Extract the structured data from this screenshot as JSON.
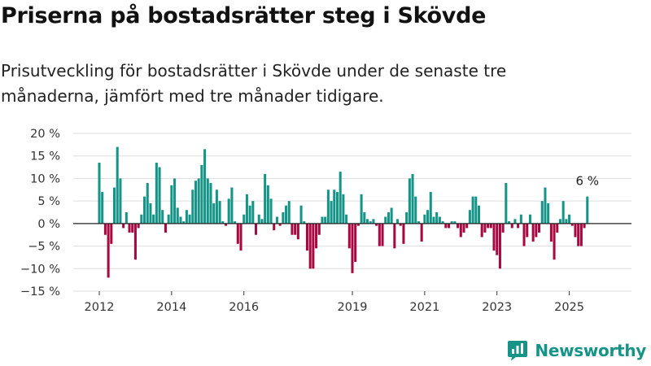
{
  "header": {
    "title": "Priserna på bostadsrätter steg i Skövde",
    "subtitle": "Prisutveckling för bostadsrätter i Skövde under de senaste tre månaderna, jämfört med tre månader tidigare."
  },
  "brand": {
    "name": "Newsworthy",
    "icon": "newsworthy-logo-icon",
    "color": "#159487"
  },
  "colors": {
    "positive": "#159487",
    "negative": "#A6083F"
  },
  "chart_data": {
    "type": "bar",
    "title": "",
    "xlabel": "",
    "ylabel": "",
    "y_unit": "%",
    "ylim": [
      -15,
      20
    ],
    "y_ticks": [
      20,
      15,
      10,
      5,
      0,
      -5,
      -10,
      -15
    ],
    "y_tick_labels": [
      "20 %",
      "15 %",
      "10 %",
      "5 %",
      "0 %",
      "−5 %",
      "−10 %",
      "−15 %"
    ],
    "x_ticks": [
      2012,
      2014,
      2016,
      2019,
      2021,
      2023,
      2025
    ],
    "x_tick_labels": [
      "2012",
      "2014",
      "2016",
      "2019",
      "2021",
      "2023",
      "2025"
    ],
    "x_start": "2012-01",
    "grid": true,
    "annotation": {
      "label": "6 %",
      "target": "last"
    },
    "values": [
      13.5,
      7,
      -2.5,
      -12,
      -4.5,
      8,
      17,
      10,
      -1,
      2.5,
      -2,
      -2,
      -8,
      -1,
      2,
      6,
      9,
      4.5,
      2,
      13.5,
      12.5,
      3,
      -2,
      2,
      8.5,
      10,
      3.5,
      1.5,
      0.5,
      3,
      2,
      7.5,
      9.5,
      10,
      13,
      16.5,
      10,
      9,
      4.5,
      7.5,
      5,
      0.5,
      -0.5,
      5.5,
      8,
      0.5,
      -4.5,
      -6,
      2,
      6.5,
      4,
      5,
      -2.5,
      2,
      1,
      11,
      8.5,
      5.5,
      -1.5,
      1.5,
      -0.5,
      2.5,
      4,
      5,
      -2.5,
      -2.5,
      -3.5,
      4,
      0.5,
      -6,
      -10,
      -10,
      -5.5,
      -2.5,
      1.5,
      1.5,
      7.5,
      5,
      7.5,
      7,
      11.5,
      6.5,
      2,
      -5.5,
      -11,
      -8.5,
      -0.5,
      6.5,
      2.5,
      1,
      0.5,
      1,
      -0.5,
      -5,
      -5,
      1.5,
      2.5,
      3.5,
      -5.5,
      1,
      -0.5,
      -4.5,
      2.5,
      10,
      11,
      6,
      0.5,
      -4,
      2,
      3,
      7,
      1.5,
      2.5,
      1.5,
      0.5,
      -1,
      -1,
      0.5,
      0.5,
      -1,
      -3,
      -2,
      -1,
      3,
      6,
      6,
      4,
      -3,
      -2,
      -1,
      -1,
      -6,
      -7,
      -10,
      -2,
      9,
      0.5,
      -1,
      1,
      -1,
      2,
      -5,
      -3,
      2,
      -4,
      -3,
      -2,
      5,
      8,
      4.5,
      -4,
      -8,
      -2,
      1,
      5,
      1,
      2,
      -0.5,
      -3,
      -5,
      -5,
      -1,
      6
    ]
  }
}
